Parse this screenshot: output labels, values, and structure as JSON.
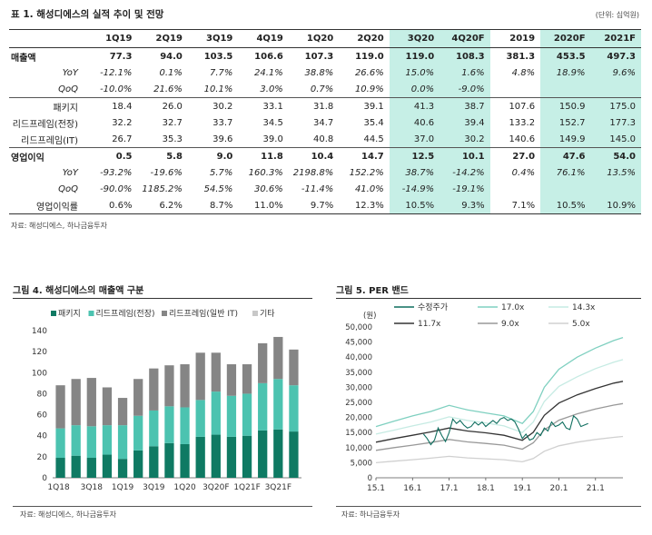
{
  "table": {
    "title": "표 1. 해성디에스의 실적 추이 및 전망",
    "unit": "(단위: 십억원)",
    "headers": [
      "",
      "1Q19",
      "2Q19",
      "3Q19",
      "4Q19",
      "1Q20",
      "2Q20",
      "3Q20",
      "4Q20F",
      "2019",
      "2020F",
      "2021F"
    ],
    "rows": [
      {
        "label": "매출액",
        "style": "bold",
        "values": [
          "77.3",
          "94.0",
          "103.5",
          "106.6",
          "107.3",
          "119.0",
          "119.0",
          "108.3",
          "381.3",
          "453.5",
          "497.3"
        ]
      },
      {
        "label": "YoY",
        "style": "it",
        "values": [
          "-12.1%",
          "0.1%",
          "7.7%",
          "24.1%",
          "38.8%",
          "26.6%",
          "15.0%",
          "1.6%",
          "4.8%",
          "18.9%",
          "9.6%"
        ]
      },
      {
        "label": "QoQ",
        "style": "it",
        "values": [
          "-10.0%",
          "21.6%",
          "10.1%",
          "3.0%",
          "0.7%",
          "10.9%",
          "0.0%",
          "-9.0%",
          "",
          "",
          ""
        ]
      },
      {
        "label": "패키지",
        "style": "",
        "values": [
          "18.4",
          "26.0",
          "30.2",
          "33.1",
          "31.8",
          "39.1",
          "41.3",
          "38.7",
          "107.6",
          "150.9",
          "175.0"
        ]
      },
      {
        "label": "리드프레임(전장)",
        "style": "",
        "values": [
          "32.2",
          "32.7",
          "33.7",
          "34.5",
          "34.7",
          "35.4",
          "40.6",
          "39.4",
          "133.2",
          "152.7",
          "177.3"
        ]
      },
      {
        "label": "리드프레임(IT)",
        "style": "",
        "values": [
          "26.7",
          "35.3",
          "39.6",
          "39.0",
          "40.8",
          "44.5",
          "37.0",
          "30.2",
          "140.6",
          "149.9",
          "145.0"
        ]
      },
      {
        "label": "영업이익",
        "style": "bold",
        "values": [
          "0.5",
          "5.8",
          "9.0",
          "11.8",
          "10.4",
          "14.7",
          "12.5",
          "10.1",
          "27.0",
          "47.6",
          "54.0"
        ]
      },
      {
        "label": "YoY",
        "style": "it",
        "values": [
          "-93.2%",
          "-19.6%",
          "5.7%",
          "160.3%",
          "2198.8%",
          "152.2%",
          "38.7%",
          "-14.2%",
          "0.4%",
          "76.1%",
          "13.5%"
        ]
      },
      {
        "label": "QoQ",
        "style": "it",
        "values": [
          "-90.0%",
          "1185.2%",
          "54.5%",
          "30.6%",
          "-11.4%",
          "41.0%",
          "-14.9%",
          "-19.1%",
          "",
          "",
          ""
        ]
      },
      {
        "label": "영업이익률",
        "style": "",
        "values": [
          "0.6%",
          "6.2%",
          "8.7%",
          "11.0%",
          "9.7%",
          "12.3%",
          "10.5%",
          "9.3%",
          "7.1%",
          "10.5%",
          "10.9%"
        ]
      }
    ],
    "source": "자료: 해성디에스, 하나금융투자"
  },
  "chart_data": [
    {
      "type": "bar",
      "title": "그림 4. 해성디에스의 매출액 구분",
      "source": "자료: 해성디에스, 하나금융투자",
      "ylim": [
        0,
        140
      ],
      "yticks": [
        0,
        20,
        40,
        60,
        80,
        100,
        120,
        140
      ],
      "xtick_labels": [
        "1Q18",
        "3Q18",
        "1Q19",
        "3Q19",
        "1Q20",
        "3Q20F",
        "1Q21F",
        "3Q21F"
      ],
      "categories": [
        "1Q18",
        "2Q18",
        "3Q18",
        "4Q18",
        "1Q19",
        "2Q19",
        "3Q19",
        "4Q19",
        "1Q20",
        "2Q20",
        "3Q20F",
        "4Q20F",
        "1Q21F",
        "2Q21F",
        "3Q21F",
        "4Q21F"
      ],
      "legend_position": "top",
      "series": [
        {
          "name": "패키지",
          "color": "#0f7a63",
          "values": [
            19,
            21,
            19,
            22,
            18,
            26,
            30,
            33,
            32,
            39,
            41,
            39,
            40,
            45,
            46,
            44
          ]
        },
        {
          "name": "리드프레임(전장)",
          "color": "#4cc3b0",
          "values": [
            28,
            29,
            30,
            28,
            32,
            33,
            34,
            35,
            35,
            35,
            41,
            39,
            40,
            45,
            48,
            44
          ]
        },
        {
          "name": "리드프레임(일반 IT)",
          "color": "#858585",
          "values": [
            41,
            44,
            46,
            36,
            26,
            35,
            40,
            39,
            41,
            45,
            37,
            30,
            28,
            38,
            40,
            34
          ]
        },
        {
          "name": "기타",
          "color": "#c8c8c8",
          "values": [
            0,
            0,
            0,
            0,
            0,
            0,
            0,
            0,
            0,
            0,
            0,
            0,
            0,
            0,
            0,
            0
          ]
        }
      ]
    },
    {
      "type": "line",
      "title": "그림 5. PER 밴드",
      "source": "자료: 하나금융투자",
      "ylabel": "(원)",
      "ylim": [
        0,
        50000
      ],
      "yticks": [
        0,
        5000,
        10000,
        15000,
        20000,
        25000,
        30000,
        35000,
        40000,
        45000,
        50000
      ],
      "ytick_labels": [
        "0",
        "5,000",
        "10,000",
        "15,000",
        "20,000",
        "25,000",
        "30,000",
        "35,000",
        "40,000",
        "45,000",
        "50,000"
      ],
      "xlim": [
        2015.0,
        2021.75
      ],
      "xticks": [
        2015.0,
        2016.0,
        2017.0,
        2018.0,
        2019.0,
        2020.0,
        2021.0
      ],
      "xtick_labels": [
        "15.1",
        "16.1",
        "17.1",
        "18.1",
        "19.1",
        "20.1",
        "21.1"
      ],
      "legend_position": "top",
      "series": [
        {
          "name": "수정주가",
          "color": "#0f6e5f",
          "x": [
            2016.3,
            2016.4,
            2016.5,
            2016.6,
            2016.7,
            2016.8,
            2016.9,
            2017.0,
            2017.1,
            2017.2,
            2017.3,
            2017.4,
            2017.5,
            2017.6,
            2017.7,
            2017.8,
            2017.9,
            2018.0,
            2018.1,
            2018.2,
            2018.3,
            2018.4,
            2018.5,
            2018.6,
            2018.7,
            2018.8,
            2018.9,
            2019.0,
            2019.1,
            2019.2,
            2019.3,
            2019.4,
            2019.5,
            2019.6,
            2019.7,
            2019.8,
            2019.9,
            2020.0,
            2020.1,
            2020.2,
            2020.3,
            2020.4,
            2020.5,
            2020.6,
            2020.7,
            2020.8
          ],
          "y": [
            14500,
            13000,
            11000,
            12500,
            16500,
            14000,
            12000,
            15000,
            19500,
            18000,
            19000,
            17500,
            16500,
            17000,
            18500,
            17500,
            18500,
            17000,
            18000,
            19000,
            18000,
            19500,
            20000,
            19000,
            19500,
            18500,
            16000,
            13000,
            14500,
            12500,
            13000,
            15000,
            14000,
            16500,
            15500,
            18500,
            17000,
            17500,
            18500,
            16500,
            16000,
            20500,
            19500,
            17000,
            17500,
            18000
          ]
        },
        {
          "name": "17.0x",
          "color": "#7fd0c0",
          "x": [
            2015.0,
            2015.5,
            2016.0,
            2016.5,
            2017.0,
            2017.5,
            2018.0,
            2018.5,
            2019.0,
            2019.3,
            2019.6,
            2020.0,
            2020.5,
            2021.0,
            2021.5,
            2021.75
          ],
          "y": [
            17000,
            18800,
            20500,
            22000,
            24000,
            22500,
            21500,
            20500,
            18000,
            22000,
            30000,
            36000,
            40000,
            43000,
            45500,
            46500
          ]
        },
        {
          "name": "14.3x",
          "color": "#c6ebe3",
          "x": [
            2015.0,
            2015.5,
            2016.0,
            2016.5,
            2017.0,
            2017.5,
            2018.0,
            2018.5,
            2019.0,
            2019.3,
            2019.6,
            2020.0,
            2020.5,
            2021.0,
            2021.5,
            2021.75
          ],
          "y": [
            14500,
            15800,
            17200,
            18500,
            20200,
            19000,
            18200,
            17200,
            15000,
            18500,
            25300,
            30300,
            33500,
            36200,
            38300,
            39200
          ]
        },
        {
          "name": "11.7x",
          "color": "#333333",
          "x": [
            2015.0,
            2015.5,
            2016.0,
            2016.5,
            2017.0,
            2017.5,
            2018.0,
            2018.5,
            2019.0,
            2019.3,
            2019.6,
            2020.0,
            2020.5,
            2021.0,
            2021.5,
            2021.75
          ],
          "y": [
            11800,
            13000,
            14100,
            15200,
            16500,
            15500,
            14900,
            14100,
            12400,
            15100,
            20700,
            24800,
            27500,
            29600,
            31400,
            32000
          ]
        },
        {
          "name": "9.0x",
          "color": "#999999",
          "x": [
            2015.0,
            2015.5,
            2016.0,
            2016.5,
            2017.0,
            2017.5,
            2018.0,
            2018.5,
            2019.0,
            2019.3,
            2019.6,
            2020.0,
            2020.5,
            2021.0,
            2021.5,
            2021.75
          ],
          "y": [
            9100,
            10000,
            10800,
            11700,
            12700,
            11900,
            11400,
            10800,
            9500,
            11600,
            15900,
            19100,
            21200,
            22800,
            24100,
            24600
          ]
        },
        {
          "name": "5.0x",
          "color": "#d0d0d0",
          "x": [
            2015.0,
            2015.5,
            2016.0,
            2016.5,
            2017.0,
            2017.5,
            2018.0,
            2018.5,
            2019.0,
            2019.3,
            2019.6,
            2020.0,
            2020.5,
            2021.0,
            2021.5,
            2021.75
          ],
          "y": [
            5000,
            5500,
            6000,
            6500,
            7100,
            6600,
            6300,
            6000,
            5300,
            6400,
            8800,
            10600,
            11800,
            12700,
            13400,
            13700
          ]
        }
      ]
    }
  ]
}
